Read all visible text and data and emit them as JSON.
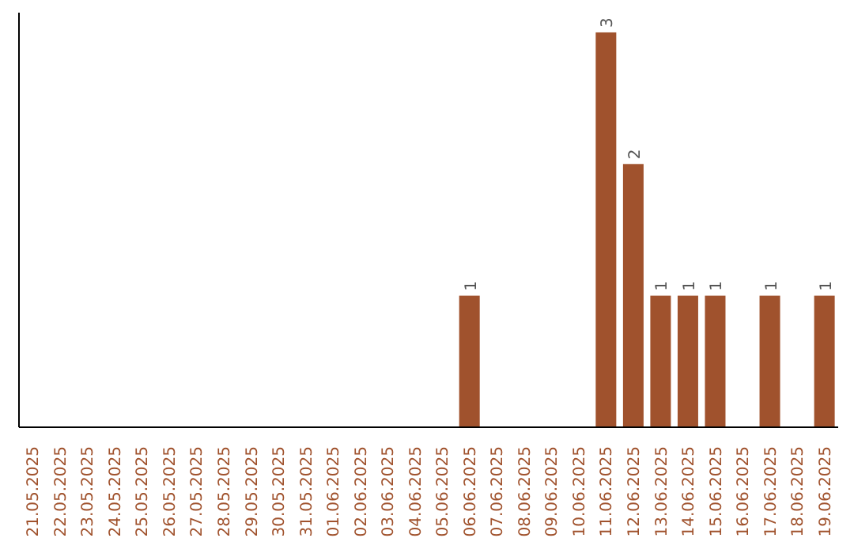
{
  "chart_data": {
    "type": "bar",
    "categories": [
      "21.05.2025",
      "22.05.2025",
      "23.05.2025",
      "24.05.2025",
      "25.05.2025",
      "26.05.2025",
      "27.05.2025",
      "28.05.2025",
      "29.05.2025",
      "30.05.2025",
      "31.05.2025",
      "01.06.2025",
      "02.06.2025",
      "03.06.2025",
      "04.06.2025",
      "05.06.2025",
      "06.06.2025",
      "07.06.2025",
      "08.06.2025",
      "09.06.2025",
      "10.06.2025",
      "11.06.2025",
      "12.06.2025",
      "13.06.2025",
      "14.06.2025",
      "15.06.2025",
      "16.06.2025",
      "17.06.2025",
      "18.06.2025",
      "19.06.2025"
    ],
    "values": [
      null,
      null,
      null,
      null,
      null,
      null,
      null,
      null,
      null,
      null,
      null,
      null,
      null,
      null,
      null,
      null,
      1,
      null,
      null,
      null,
      null,
      3,
      2,
      1,
      1,
      1,
      null,
      1,
      null,
      1
    ],
    "value_labels": [
      null,
      null,
      null,
      null,
      null,
      null,
      null,
      null,
      null,
      null,
      null,
      null,
      null,
      null,
      null,
      null,
      "1",
      null,
      null,
      null,
      null,
      "3",
      "2",
      "1",
      "1",
      "1",
      null,
      "1",
      null,
      "1"
    ],
    "color": "#a0522d",
    "grid": false,
    "legend": false
  }
}
